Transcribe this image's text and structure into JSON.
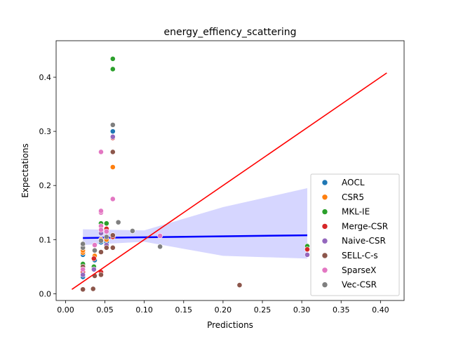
{
  "chart_data": {
    "type": "scatter",
    "title": "energy_effiency_scattering",
    "xlabel": "Predictions",
    "ylabel": "Expectations",
    "xlim": [
      -0.012,
      0.43
    ],
    "ylim": [
      -0.0125,
      0.4675
    ],
    "xticks": [
      0.0,
      0.05,
      0.1,
      0.15,
      0.2,
      0.25,
      0.3,
      0.35,
      0.4
    ],
    "xtick_labels": [
      "0.00",
      "0.05",
      "0.10",
      "0.15",
      "0.20",
      "0.25",
      "0.30",
      "0.35",
      "0.40"
    ],
    "yticks": [
      0.0,
      0.1,
      0.2,
      0.3,
      0.4
    ],
    "ytick_labels": [
      "0.0",
      "0.1",
      "0.2",
      "0.3",
      "0.4"
    ],
    "grid": false,
    "legend_position": "lower-right",
    "series": [
      {
        "name": "AOCL",
        "color": "#1f77b4",
        "points": [
          [
            0.022,
            0.031
          ],
          [
            0.022,
            0.072
          ],
          [
            0.022,
            0.076
          ],
          [
            0.037,
            0.062
          ],
          [
            0.045,
            0.095
          ],
          [
            0.052,
            0.095
          ],
          [
            0.06,
            0.3
          ],
          [
            0.06,
            0.29
          ]
        ]
      },
      {
        "name": "CSR5",
        "color": "#ff7f0e",
        "points": [
          [
            0.022,
            0.076
          ],
          [
            0.022,
            0.08
          ],
          [
            0.037,
            0.07
          ],
          [
            0.045,
            0.1
          ],
          [
            0.052,
            0.1
          ],
          [
            0.06,
            0.234
          ]
        ]
      },
      {
        "name": "MKL-IE",
        "color": "#2ca02c",
        "points": [
          [
            0.022,
            0.055
          ],
          [
            0.036,
            0.05
          ],
          [
            0.045,
            0.13
          ],
          [
            0.052,
            0.13
          ],
          [
            0.06,
            0.434
          ],
          [
            0.06,
            0.415
          ],
          [
            0.307,
            0.088
          ]
        ]
      },
      {
        "name": "Merge-CSR",
        "color": "#d62728",
        "points": [
          [
            0.022,
            0.04
          ],
          [
            0.036,
            0.065
          ],
          [
            0.045,
            0.04
          ],
          [
            0.052,
            0.12
          ],
          [
            0.06,
            0.288
          ],
          [
            0.06,
            0.105
          ],
          [
            0.307,
            0.082
          ]
        ]
      },
      {
        "name": "Naive-CSR",
        "color": "#9467bd",
        "points": [
          [
            0.022,
            0.035
          ],
          [
            0.036,
            0.045
          ],
          [
            0.045,
            0.112
          ],
          [
            0.052,
            0.09
          ],
          [
            0.06,
            0.29
          ],
          [
            0.307,
            0.072
          ]
        ]
      },
      {
        "name": "SELL-C-s",
        "color": "#8c564b",
        "points": [
          [
            0.022,
            0.008
          ],
          [
            0.022,
            0.05
          ],
          [
            0.035,
            0.009
          ],
          [
            0.037,
            0.033
          ],
          [
            0.045,
            0.035
          ],
          [
            0.045,
            0.077
          ],
          [
            0.052,
            0.085
          ],
          [
            0.06,
            0.262
          ],
          [
            0.06,
            0.085
          ],
          [
            0.06,
            0.108
          ],
          [
            0.221,
            0.016
          ]
        ]
      },
      {
        "name": "SparseX",
        "color": "#e377c2",
        "points": [
          [
            0.022,
            0.045
          ],
          [
            0.022,
            0.088
          ],
          [
            0.037,
            0.09
          ],
          [
            0.045,
            0.262
          ],
          [
            0.045,
            0.15
          ],
          [
            0.045,
            0.153
          ],
          [
            0.045,
            0.125
          ],
          [
            0.045,
            0.118
          ],
          [
            0.052,
            0.115
          ],
          [
            0.06,
            0.175
          ],
          [
            0.12,
            0.107
          ]
        ]
      },
      {
        "name": "Vec-CSR",
        "color": "#7f7f7f",
        "points": [
          [
            0.022,
            0.085
          ],
          [
            0.022,
            0.092
          ],
          [
            0.037,
            0.08
          ],
          [
            0.045,
            0.098
          ],
          [
            0.052,
            0.105
          ],
          [
            0.06,
            0.312
          ],
          [
            0.067,
            0.132
          ],
          [
            0.085,
            0.116
          ],
          [
            0.12,
            0.087
          ]
        ]
      }
    ],
    "regression": {
      "color": "#0000ff",
      "band_color": "#c8c8ff",
      "line": [
        [
          0.022,
          0.103
        ],
        [
          0.307,
          0.108
        ]
      ],
      "band_upper": [
        [
          0.022,
          0.119
        ],
        [
          0.1,
          0.117
        ],
        [
          0.2,
          0.16
        ],
        [
          0.307,
          0.195
        ]
      ],
      "band_lower": [
        [
          0.022,
          0.09
        ],
        [
          0.1,
          0.096
        ],
        [
          0.2,
          0.07
        ],
        [
          0.307,
          0.065
        ]
      ]
    },
    "reference_line": {
      "color": "#ff0000",
      "points": [
        [
          0.008,
          0.008
        ],
        [
          0.408,
          0.408
        ]
      ]
    }
  }
}
